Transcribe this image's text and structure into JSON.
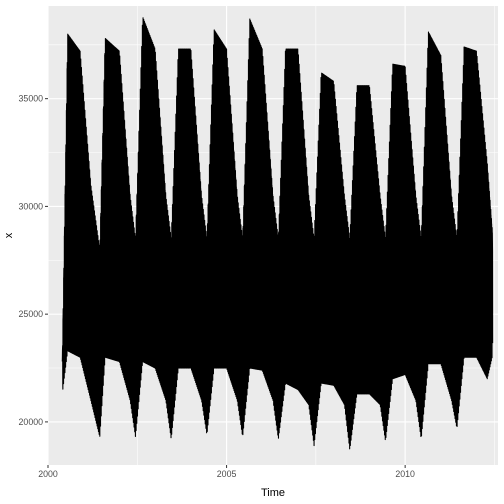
{
  "chart_data": {
    "type": "line",
    "xlabel": "Time",
    "ylabel": "x",
    "xlim": [
      2000,
      2012.6
    ],
    "ylim": [
      18000,
      39300
    ],
    "xticks": [
      2000,
      2005,
      2010
    ],
    "xtick_labels": [
      "2000",
      "2005",
      "2010"
    ],
    "yticks": [
      20000,
      25000,
      30000,
      35000
    ],
    "ytick_labels": [
      "20000",
      "25000",
      "30000",
      "35000"
    ],
    "grid": true,
    "legend": "none",
    "series_color": "#000000",
    "panel_color": "#ebebeb",
    "sampling": "daily",
    "x_start": 2000.4,
    "x_end": 2012.45,
    "weekly_cycle": {
      "period_days": 7,
      "weekday_high_days": 5,
      "weekend_low_days": 2
    },
    "envelope": {
      "x": [
        2000.4,
        2000.55,
        2000.9,
        2001.2,
        2001.45,
        2001.6,
        2002.0,
        2002.3,
        2002.45,
        2002.65,
        2003.0,
        2003.3,
        2003.45,
        2003.65,
        2004.0,
        2004.3,
        2004.45,
        2004.65,
        2005.0,
        2005.3,
        2005.45,
        2005.65,
        2006.0,
        2006.3,
        2006.45,
        2006.65,
        2007.0,
        2007.3,
        2007.45,
        2007.65,
        2008.0,
        2008.3,
        2008.45,
        2008.65,
        2009.0,
        2009.3,
        2009.45,
        2009.65,
        2010.0,
        2010.3,
        2010.45,
        2010.65,
        2011.0,
        2011.3,
        2011.45,
        2011.65,
        2012.0,
        2012.3,
        2012.45
      ],
      "high": [
        22800,
        38000,
        37200,
        31000,
        28000,
        37800,
        37200,
        30500,
        28500,
        38800,
        37300,
        30500,
        28500,
        37300,
        37300,
        30500,
        28500,
        38200,
        37300,
        30500,
        28500,
        38700,
        37300,
        30500,
        28500,
        37300,
        37300,
        30500,
        28500,
        36200,
        35800,
        30500,
        28500,
        35600,
        35600,
        30500,
        28500,
        36600,
        36500,
        30500,
        28500,
        38100,
        37000,
        30500,
        28500,
        37400,
        37200,
        32000,
        28700
      ],
      "low": [
        21300,
        23300,
        23000,
        21000,
        19300,
        23000,
        22800,
        21000,
        19300,
        22800,
        22500,
        21000,
        19200,
        22500,
        22500,
        21000,
        19400,
        22500,
        22500,
        21000,
        19300,
        22500,
        22400,
        21000,
        19200,
        21800,
        21500,
        20800,
        18900,
        21800,
        21700,
        20800,
        18700,
        21300,
        21300,
        20800,
        19100,
        22000,
        22200,
        21000,
        19200,
        22700,
        22700,
        21000,
        19700,
        23000,
        23000,
        22000,
        23100
      ]
    }
  }
}
